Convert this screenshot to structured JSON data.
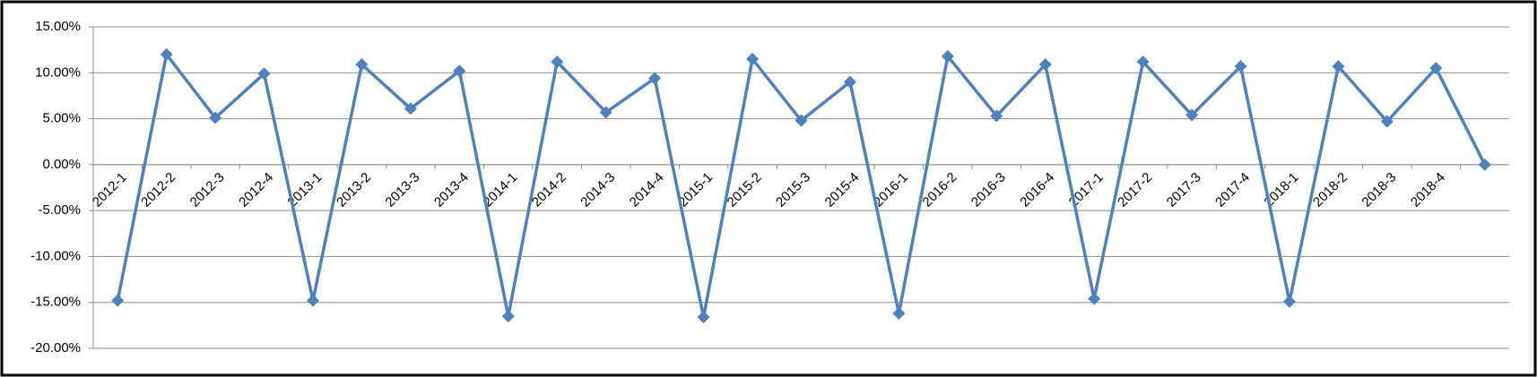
{
  "chart_data": {
    "type": "line",
    "categories": [
      "2012-1",
      "2012-2",
      "2012-3",
      "2012-4",
      "2013-1",
      "2013-2",
      "2013-3",
      "2013-4",
      "2014-1",
      "2014-2",
      "2014-3",
      "2014-4",
      "2015-1",
      "2015-2",
      "2015-3",
      "2015-4",
      "2016-1",
      "2016-2",
      "2016-3",
      "2016-4",
      "2017-1",
      "2017-2",
      "2017-3",
      "2017-4",
      "2018-1",
      "2018-2",
      "2018-3",
      "2018-4",
      null
    ],
    "series": [
      {
        "color": "#4f81bd",
        "values": [
          -14.8,
          12.0,
          5.1,
          9.9,
          -14.8,
          10.9,
          6.1,
          10.2,
          -16.5,
          11.2,
          5.7,
          9.4,
          -16.6,
          11.5,
          4.8,
          9.0,
          -16.2,
          11.8,
          5.3,
          10.9,
          -14.6,
          11.2,
          5.4,
          10.7,
          -14.9,
          10.7,
          4.7,
          10.5,
          0
        ]
      }
    ],
    "ylim": [
      -20,
      15
    ],
    "yticks": [
      {
        "value": -20,
        "label": "-20.00%"
      },
      {
        "value": -15,
        "label": "-15.00%"
      },
      {
        "value": -10,
        "label": "-10.00%"
      },
      {
        "value": -5,
        "label": "-5.00%"
      },
      {
        "value": 0,
        "label": "0.00%"
      },
      {
        "value": 5,
        "label": "5.00%"
      },
      {
        "value": 10,
        "label": "10.00%"
      },
      {
        "value": 15,
        "label": "15.00%"
      }
    ],
    "grid": true
  }
}
